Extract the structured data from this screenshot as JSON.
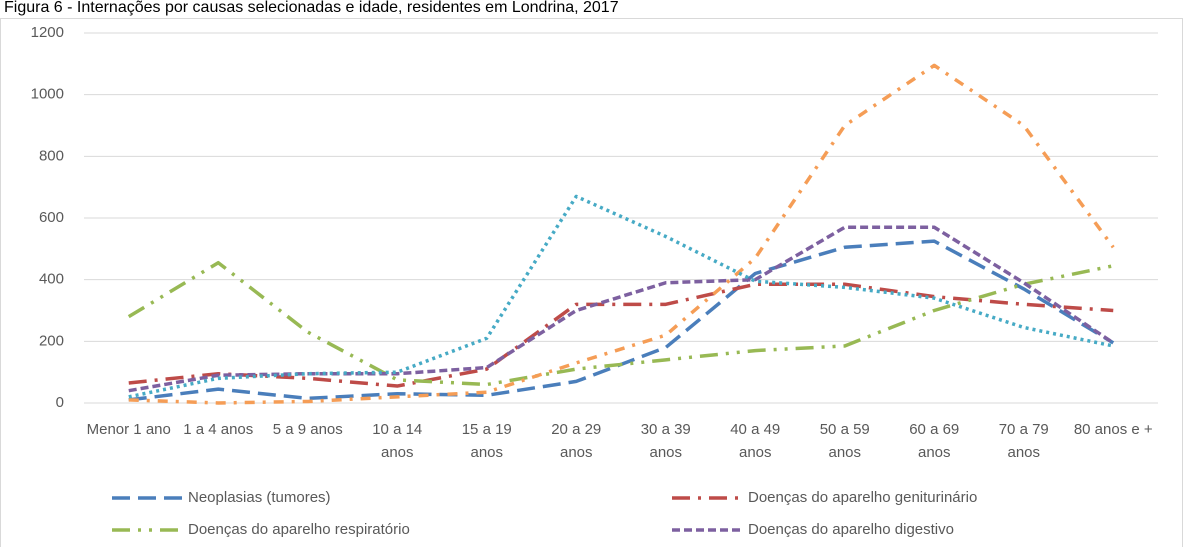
{
  "chart_data": {
    "type": "line",
    "title": "Figura 6 - Internações por causas selecionadas e idade, residentes em Londrina, 2017",
    "categories": [
      "Menor 1 ano",
      "1 a 4 anos",
      "5 a 9 anos",
      "10 a 14 anos",
      "15 a 19 anos",
      "20 a 29 anos",
      "30 a 39 anos",
      "40 a 49 anos",
      "50 a 59 anos",
      "60 a 69 anos",
      "70 a 79 anos",
      "80 anos e +"
    ],
    "series": [
      {
        "name": "Neoplasias (tumores)",
        "color": "#4a7ebb",
        "dash": "long-dash",
        "values": [
          10,
          45,
          15,
          30,
          25,
          70,
          180,
          420,
          505,
          525,
          370,
          195
        ]
      },
      {
        "name": "Doenças do aparelho geniturinário",
        "color": "#be4b48",
        "dash": "long-dash-dot",
        "values": [
          65,
          95,
          80,
          55,
          110,
          320,
          320,
          385,
          385,
          345,
          320,
          300
        ]
      },
      {
        "name": "Doenças do aparelho respiratório",
        "color": "#98b954",
        "dash": "long-dash-dot-dot",
        "values": [
          280,
          455,
          230,
          75,
          60,
          110,
          140,
          170,
          185,
          300,
          385,
          445
        ]
      },
      {
        "name": "Doenças do aparelho digestivo",
        "color": "#7d60a0",
        "dash": "dash",
        "values": [
          40,
          90,
          95,
          95,
          115,
          300,
          390,
          400,
          570,
          570,
          390,
          195
        ]
      },
      {
        "color": "#f59d56",
        "dash": "dash-dot",
        "values": [
          10,
          0,
          5,
          20,
          35,
          130,
          220,
          470,
          900,
          1095,
          900,
          505
        ]
      },
      {
        "color": "#46aac5",
        "dash": "dot",
        "values": [
          20,
          80,
          95,
          100,
          210,
          670,
          540,
          395,
          375,
          340,
          245,
          185
        ]
      }
    ],
    "ylim": [
      0,
      1200
    ],
    "yticks": [
      0,
      200,
      400,
      600,
      800,
      1000,
      1200
    ],
    "grid": true
  }
}
